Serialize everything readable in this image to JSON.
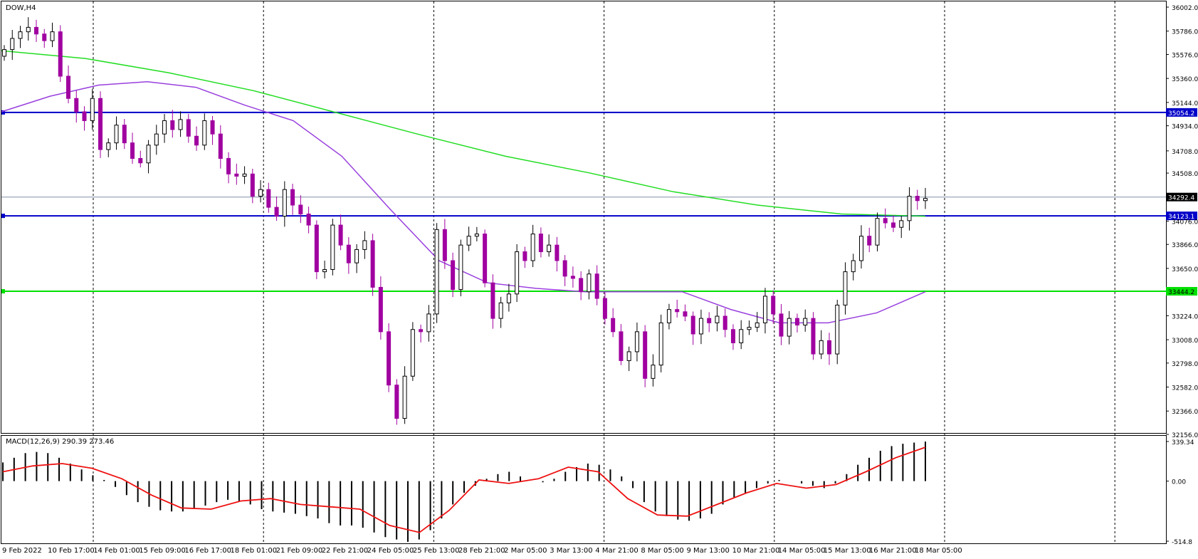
{
  "main": {
    "title": "DOW,H4",
    "price_ticks": [
      "36002.0",
      "35786.0",
      "35576.0",
      "35360.0",
      "35144.0",
      "34934.0",
      "34708.0",
      "34508.0",
      "34292.4",
      "34076.0",
      "33866.0",
      "33650.0",
      "33444.2",
      "33224.0",
      "33008.0",
      "32798.0",
      "32582.0",
      "32366.0",
      "32156.0"
    ],
    "price_tick_values": [
      36002.0,
      35786.0,
      35576.0,
      35360.0,
      35144.0,
      34934.0,
      34708.0,
      34508.0,
      34292.4,
      34076.0,
      33866.0,
      33650.0,
      33444.2,
      33224.0,
      33008.0,
      32798.0,
      32582.0,
      32366.0,
      32156.0
    ],
    "ylim": [
      32156.0,
      36002.0
    ]
  },
  "macd": {
    "title": "MACD(12,26,9) 290.39 273.46",
    "ticks": [
      "339.34",
      "0.00",
      "-514.8"
    ],
    "tick_values": [
      339.34,
      0.0,
      -514.8
    ]
  },
  "x_labels": [
    "9 Feb 2022",
    "10 Feb 17:00",
    "14 Feb 01:00",
    "15 Feb 09:00",
    "16 Feb 17:00",
    "18 Feb 01:00",
    "21 Feb 09:00",
    "22 Feb 21:00",
    "24 Feb 05:00",
    "25 Feb 13:00",
    "28 Feb 21:00",
    "2 Mar 05:00",
    "3 Mar 13:00",
    "4 Mar 21:00",
    "8 Mar 05:00",
    "9 Mar 13:00",
    "10 Mar 21:00",
    "14 Mar 05:00",
    "15 Mar 13:00",
    "16 Mar 21:00",
    "18 Mar 05:00"
  ],
  "levels": [
    {
      "name": "resistance",
      "value": 35054.2,
      "label": "35054.2",
      "color": "#0000c8"
    },
    {
      "name": "support-upper",
      "value": 34123.1,
      "label": "34123.1",
      "color": "#0000c8"
    },
    {
      "name": "support-lower",
      "value": 33444.2,
      "label": "33444.2",
      "color": "#00e000"
    },
    {
      "name": "last-price",
      "value": 34292.4,
      "label": "34292.4",
      "color": "#8090a8"
    }
  ],
  "colors": {
    "bull": "#000000",
    "bear": "#a000a0",
    "ma_fast": "#9940dd",
    "ma_slow": "#22dd22",
    "macd_signal": "#ee1111",
    "macd_hist": "#000000"
  },
  "chart_data": [
    {
      "type": "candlestick",
      "title": "DOW,H4",
      "ylim": [
        32156.0,
        36002.0
      ],
      "series": [
        {
          "name": "price",
          "closes": [
            35620,
            35720,
            35780,
            35820,
            35760,
            35700,
            35780,
            35380,
            35180,
            35060,
            34980,
            35180,
            34720,
            34780,
            34940,
            34780,
            34640,
            34600,
            34760,
            34860,
            34980,
            34900,
            34990,
            34840,
            34760,
            34980,
            34860,
            34640,
            34500,
            34480,
            34500,
            34300,
            34360,
            34200,
            34120,
            34360,
            34220,
            34140,
            34040,
            33620,
            33640,
            34040,
            33860,
            33700,
            33820,
            33900,
            33480,
            33080,
            32600,
            32300,
            32680,
            33100,
            33080,
            33240,
            34000,
            33720,
            33460,
            33860,
            33940,
            33960,
            33520,
            33200,
            33340,
            33420,
            33800,
            33720,
            33960,
            33800,
            33860,
            33720,
            33580,
            33560,
            33440,
            33600,
            33380,
            33200,
            33080,
            32820,
            32900,
            33080,
            32660,
            32780,
            33160,
            33280,
            33260,
            33220,
            33060,
            33200,
            33160,
            33220,
            33100,
            32980,
            33100,
            33120,
            33160,
            33400,
            33240,
            33040,
            33200,
            33140,
            33200,
            32880,
            33000,
            32880,
            33320,
            33620,
            33720,
            33940,
            33860,
            34100,
            34060,
            34020,
            34080,
            34300,
            34260,
            34280
          ]
        },
        {
          "name": "MA fast (purple)",
          "closes": [
            35060,
            35200,
            35300,
            35330,
            35280,
            35120,
            34980,
            34660,
            34180,
            33720,
            33520,
            33470,
            33440,
            33440,
            33440,
            33280,
            33160,
            33160,
            33250,
            33440
          ]
        },
        {
          "name": "MA slow (green)",
          "closes": [
            35610,
            35540,
            35410,
            35250,
            35050,
            34850,
            34660,
            34510,
            34340,
            34220,
            34140,
            34120
          ]
        }
      ]
    },
    {
      "type": "bar",
      "title": "MACD(12,26,9) 290.39 273.46",
      "ylim": [
        -514.8,
        339.34
      ],
      "series": [
        {
          "name": "MACD histogram",
          "values": [
            160,
            200,
            240,
            250,
            240,
            200,
            150,
            100,
            50,
            10,
            -50,
            -120,
            -180,
            -220,
            -250,
            -260,
            -260,
            -240,
            -210,
            -180,
            -160,
            -170,
            -200,
            -240,
            -260,
            -270,
            -280,
            -300,
            -320,
            -360,
            -380,
            -380,
            -400,
            -440,
            -480,
            -500,
            -520,
            -500,
            -420,
            -320,
            -200,
            -100,
            -40,
            20,
            60,
            80,
            40,
            0,
            -10,
            20,
            80,
            120,
            150,
            140,
            100,
            40,
            -60,
            -180,
            -260,
            -300,
            -330,
            -340,
            -320,
            -280,
            -200,
            -140,
            -100,
            -60,
            -20,
            10,
            0,
            -20,
            -40,
            -60,
            -20,
            60,
            140,
            200,
            260,
            300,
            320,
            330,
            339
          ]
        },
        {
          "name": "Signal (red)",
          "values": [
            80,
            130,
            150,
            110,
            20,
            -120,
            -230,
            -240,
            -170,
            -150,
            -200,
            -220,
            -240,
            -380,
            -440,
            -250,
            10,
            -20,
            20,
            120,
            80,
            -150,
            -290,
            -300,
            -200,
            -100,
            -20,
            -60,
            -30,
            80,
            200,
            290
          ]
        }
      ]
    }
  ]
}
